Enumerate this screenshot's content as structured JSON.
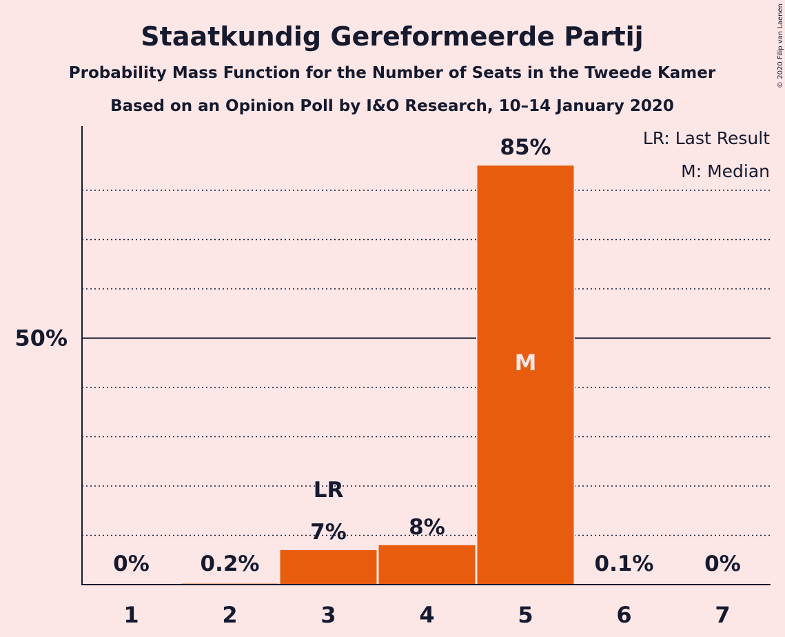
{
  "copyright": "© 2020 Filip van Laenen",
  "legend": {
    "last_result": "LR: Last Result",
    "median": "M: Median"
  },
  "colors": {
    "bar": "#e85c0d",
    "background": "#fde6e6",
    "text": "#151a2e"
  },
  "chart_data": {
    "type": "bar",
    "title": "Staatkundig Gereformeerde Partij",
    "subtitle": "Probability Mass Function for the Number of Seats in the Tweede Kamer",
    "subtitle2": "Based on an Opinion Poll by I&O Research, 10–14 January 2020",
    "xlabel": "",
    "ylabel": "",
    "categories": [
      "1",
      "2",
      "3",
      "4",
      "5",
      "6",
      "7"
    ],
    "values": [
      0,
      0.2,
      7,
      8,
      85,
      0.1,
      0
    ],
    "value_labels": [
      "0%",
      "0.2%",
      "7%",
      "8%",
      "85%",
      "0.1%",
      "0%"
    ],
    "ylim": [
      0,
      93
    ],
    "y_ticks": [
      {
        "value": 50,
        "label": "50%"
      }
    ],
    "minor_gridlines": [
      10,
      20,
      30,
      40,
      60,
      70,
      80
    ],
    "grid": true,
    "legend_position": "top-right",
    "last_result": {
      "category": "3",
      "label": "LR"
    },
    "median": {
      "category": "5",
      "label": "M"
    }
  }
}
